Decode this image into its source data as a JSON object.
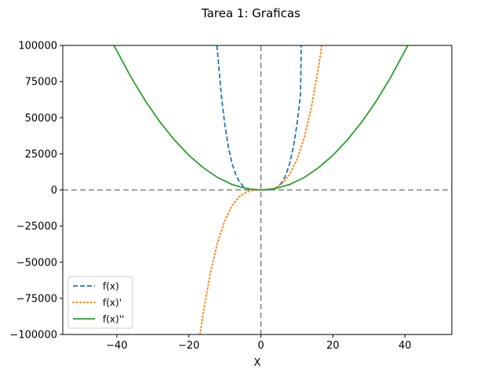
{
  "chart_data": {
    "type": "line",
    "title": "Tarea 1: Graficas",
    "xlabel": "X",
    "ylabel": "",
    "xlim": [
      -55,
      53
    ],
    "ylim": [
      -100000,
      100000
    ],
    "xticks": [
      -40,
      -20,
      0,
      20,
      40
    ],
    "xtick_labels": [
      "−40",
      "−20",
      "0",
      "20",
      "40"
    ],
    "yticks": [
      -100000,
      -75000,
      -50000,
      -25000,
      0,
      25000,
      50000,
      75000,
      100000
    ],
    "ytick_labels": [
      "−100000",
      "−75000",
      "−50000",
      "−25000",
      "0",
      "25000",
      "50000",
      "75000",
      "100000"
    ],
    "grid": false,
    "legend_position": "lower-left",
    "reference_lines": [
      {
        "orientation": "horizontal",
        "value": 0,
        "color": "#808080",
        "style": "dashed"
      },
      {
        "orientation": "vertical",
        "value": 0,
        "color": "#808080",
        "style": "dashed"
      }
    ],
    "series": [
      {
        "name": "f(x)",
        "color": "#1f77b4",
        "style": "dashed",
        "x": [
          -12.2,
          -11,
          -10,
          -9,
          -8,
          -7,
          -6,
          -5,
          -4,
          -3,
          -2,
          -1,
          0,
          1,
          2,
          3,
          4,
          5,
          6,
          7,
          8,
          9,
          10,
          11,
          11.2
        ],
        "y": [
          100000,
          66000,
          45000,
          29500,
          18400,
          10800,
          5800,
          2800,
          1150,
          370,
          75,
          5,
          0,
          5,
          75,
          370,
          1150,
          2800,
          5800,
          10800,
          18400,
          29500,
          45000,
          66000,
          100000
        ]
      },
      {
        "name": "f(x)'",
        "color": "#ff7f0e",
        "style": "dotted",
        "x": [
          -16.9,
          -16,
          -14,
          -12,
          -10,
          -8,
          -6,
          -4,
          -2,
          0,
          2,
          4,
          6,
          8,
          10,
          12,
          14,
          16,
          16.9
        ],
        "y": [
          -100000,
          -85000,
          -57000,
          -36000,
          -21000,
          -10800,
          -4600,
          -1400,
          -180,
          0,
          180,
          1400,
          4600,
          10800,
          21000,
          36000,
          57000,
          85000,
          100000
        ]
      },
      {
        "name": "f(x)''",
        "color": "#2ca02c",
        "style": "solid",
        "x": [
          -40.8,
          -36,
          -32,
          -28,
          -24,
          -20,
          -16,
          -12,
          -8,
          -4,
          0,
          4,
          8,
          12,
          16,
          20,
          24,
          28,
          32,
          36,
          40.8
        ],
        "y": [
          100000,
          77800,
          61400,
          47000,
          34600,
          24000,
          15400,
          8600,
          3800,
          950,
          0,
          950,
          3800,
          8600,
          15400,
          24000,
          34600,
          47000,
          61400,
          77800,
          100000
        ]
      }
    ]
  }
}
